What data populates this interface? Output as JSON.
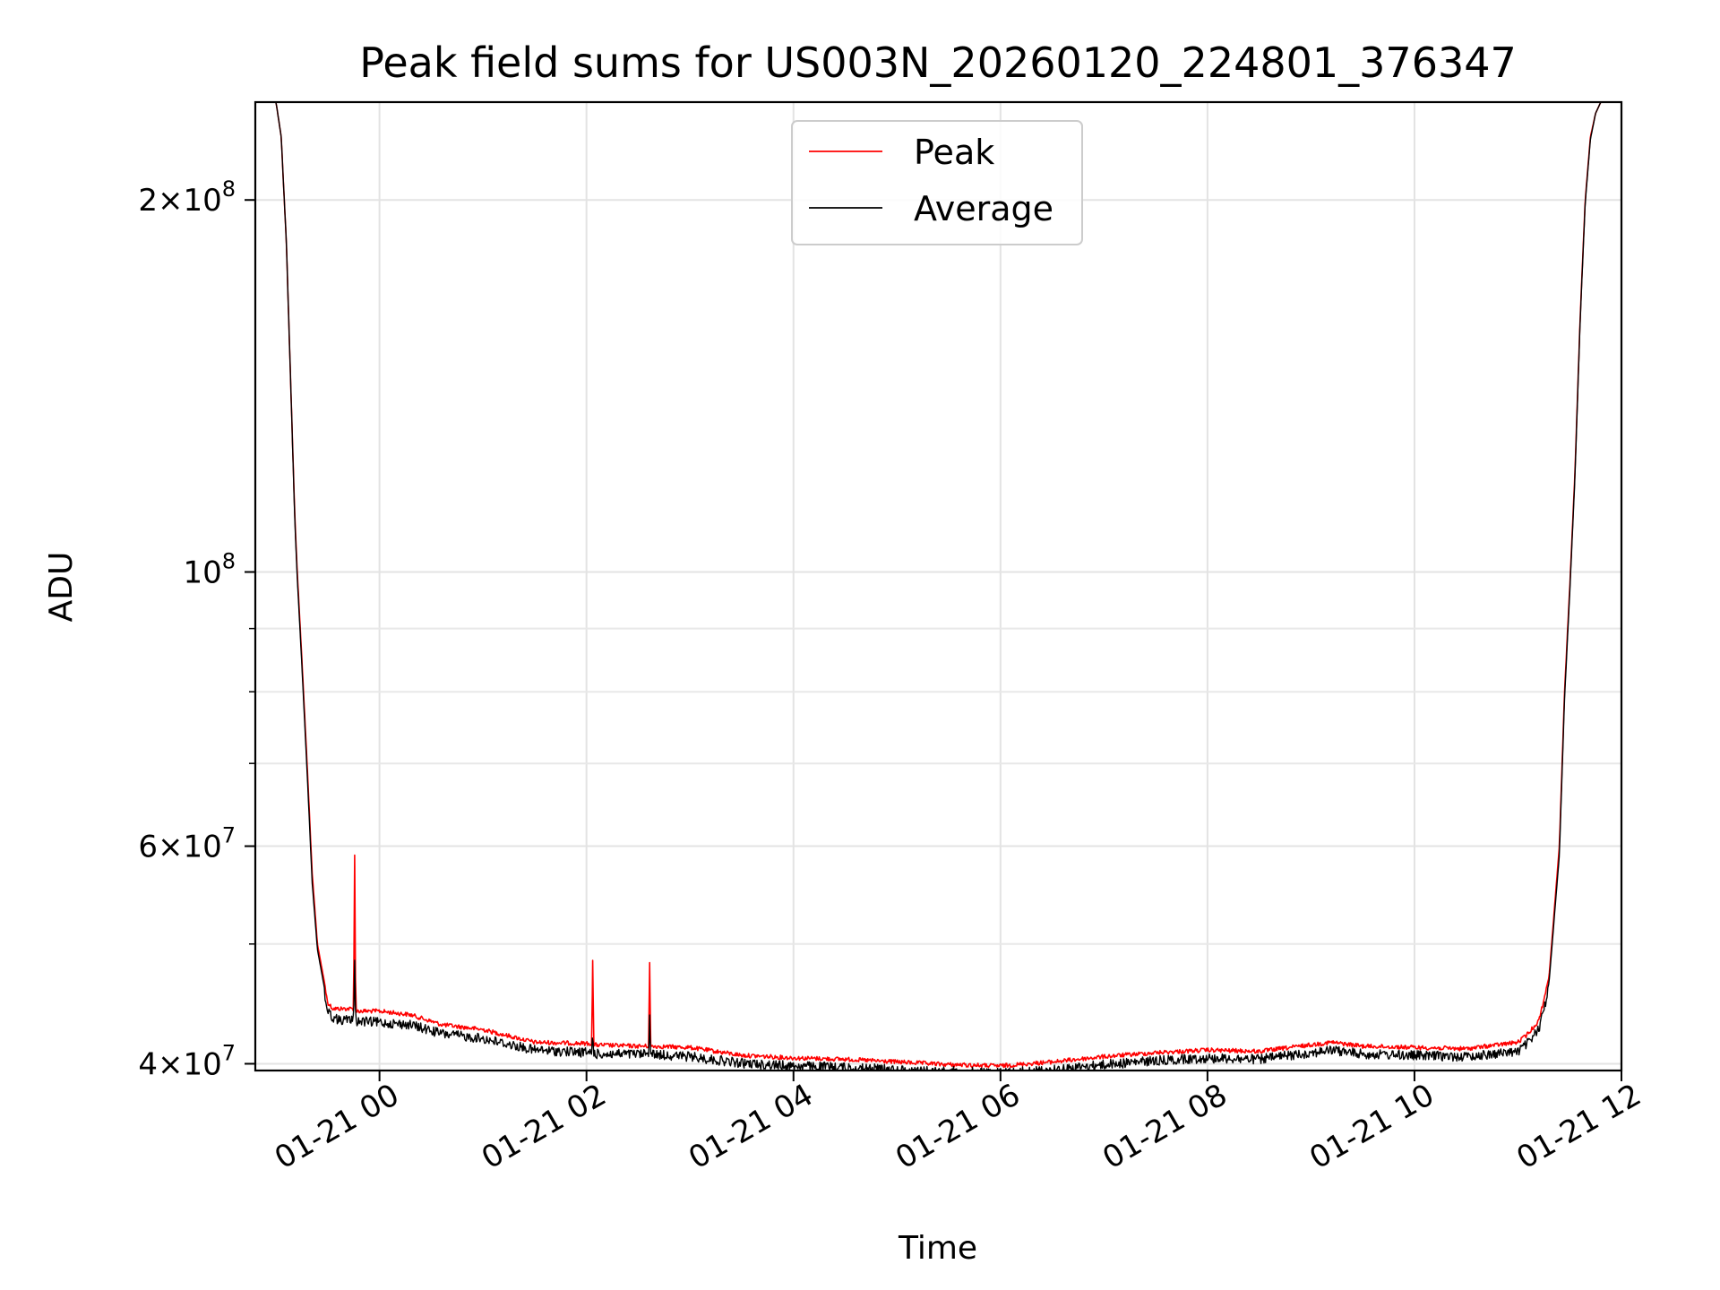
{
  "chart_data": {
    "type": "line",
    "title": "Peak field sums for US003N_20260120_224801_376347",
    "xlabel": "Time",
    "ylabel": "ADU",
    "yscale": "log",
    "grid": true,
    "legend_position": "upper center",
    "x_unit": "hours since 01-21 00:00",
    "xlim": [
      -1.2,
      12.0
    ],
    "ylim": [
      39500000,
      240000000
    ],
    "x_ticks": [
      0,
      2,
      4,
      6,
      8,
      10,
      12
    ],
    "x_tick_labels": [
      "01-21 00",
      "01-21 02",
      "01-21 04",
      "01-21 06",
      "01-21 08",
      "01-21 10",
      "01-21 12"
    ],
    "y_ticks": [
      40000000,
      60000000,
      100000000,
      200000000
    ],
    "y_tick_labels": [
      {
        "mantissa": "4",
        "exponent": "7"
      },
      {
        "mantissa": "6",
        "exponent": "7"
      },
      {
        "mantissa": "",
        "exponent": "8"
      },
      {
        "mantissa": "2",
        "exponent": "8"
      }
    ],
    "y_minor_ticks": [
      50000000,
      70000000,
      80000000,
      90000000,
      300000000
    ],
    "series": [
      {
        "name": "Peak",
        "color": "#ff0000",
        "x": [
          -1.2,
          -1.0,
          -0.95,
          -0.9,
          -0.85,
          -0.82,
          -0.8,
          -0.75,
          -0.7,
          -0.65,
          -0.6,
          -0.5,
          -0.45,
          -0.4,
          -0.35,
          -0.25,
          -0.24,
          -0.23,
          0.0,
          0.3,
          0.6,
          1.0,
          1.5,
          2.05,
          2.06,
          2.07,
          2.5,
          2.6,
          2.61,
          2.62,
          3.0,
          3.5,
          4.0,
          4.5,
          5.0,
          5.5,
          6.0,
          6.5,
          7.0,
          7.5,
          8.0,
          8.5,
          9.0,
          9.2,
          9.5,
          10.0,
          10.5,
          11.0,
          11.1,
          11.2,
          11.3,
          11.4,
          11.45,
          11.5,
          11.55,
          11.6,
          11.65,
          11.7,
          11.75,
          11.8,
          12.0
        ],
        "values": [
          240000000,
          240000000,
          225000000,
          185000000,
          135000000,
          112000000,
          102000000,
          85000000,
          70000000,
          57000000,
          50000000,
          45000000,
          44500000,
          44500000,
          44500000,
          44500000,
          59000000,
          44300000,
          44300000,
          44000000,
          43200000,
          42800000,
          41800000,
          41700000,
          48500000,
          41600000,
          41500000,
          41500000,
          48300000,
          41500000,
          41400000,
          40800000,
          40600000,
          40500000,
          40300000,
          40100000,
          40000000,
          40300000,
          40700000,
          41000000,
          41200000,
          41100000,
          41600000,
          41800000,
          41500000,
          41400000,
          41300000,
          41800000,
          42500000,
          43500000,
          47000000,
          60000000,
          80000000,
          97000000,
          120000000,
          160000000,
          200000000,
          225000000,
          235000000,
          240000000,
          240000000
        ]
      },
      {
        "name": "Average",
        "color": "#000000",
        "x": [
          -1.2,
          -1.0,
          -0.95,
          -0.9,
          -0.85,
          -0.82,
          -0.8,
          -0.75,
          -0.7,
          -0.65,
          -0.6,
          -0.5,
          -0.45,
          -0.4,
          -0.35,
          -0.25,
          -0.24,
          -0.23,
          0.0,
          0.3,
          0.6,
          1.0,
          1.5,
          2.05,
          2.06,
          2.07,
          2.5,
          2.6,
          2.61,
          2.62,
          3.0,
          3.5,
          4.0,
          4.5,
          5.0,
          5.5,
          6.0,
          6.5,
          7.0,
          7.5,
          8.0,
          8.5,
          9.0,
          9.2,
          9.5,
          10.0,
          10.5,
          11.0,
          11.1,
          11.2,
          11.3,
          11.4,
          11.45,
          11.5,
          11.55,
          11.6,
          11.65,
          11.7,
          11.75,
          11.8,
          12.0
        ],
        "values": [
          240000000,
          240000000,
          225000000,
          185000000,
          135000000,
          111000000,
          101000000,
          84000000,
          69000000,
          56000000,
          49500000,
          44500000,
          44000000,
          43800000,
          43800000,
          43800000,
          48500000,
          43700000,
          43600000,
          43400000,
          42700000,
          42300000,
          41400000,
          41200000,
          43000000,
          41100000,
          41100000,
          41100000,
          43800000,
          41100000,
          40900000,
          40400000,
          40200000,
          40100000,
          39900000,
          39800000,
          39700000,
          39900000,
          40300000,
          40600000,
          40800000,
          40700000,
          41200000,
          41400000,
          41100000,
          41000000,
          40900000,
          41300000,
          42000000,
          43000000,
          46500000,
          59000000,
          79000000,
          96000000,
          119000000,
          159000000,
          199000000,
          224000000,
          235000000,
          240000000,
          240000000
        ]
      }
    ]
  }
}
